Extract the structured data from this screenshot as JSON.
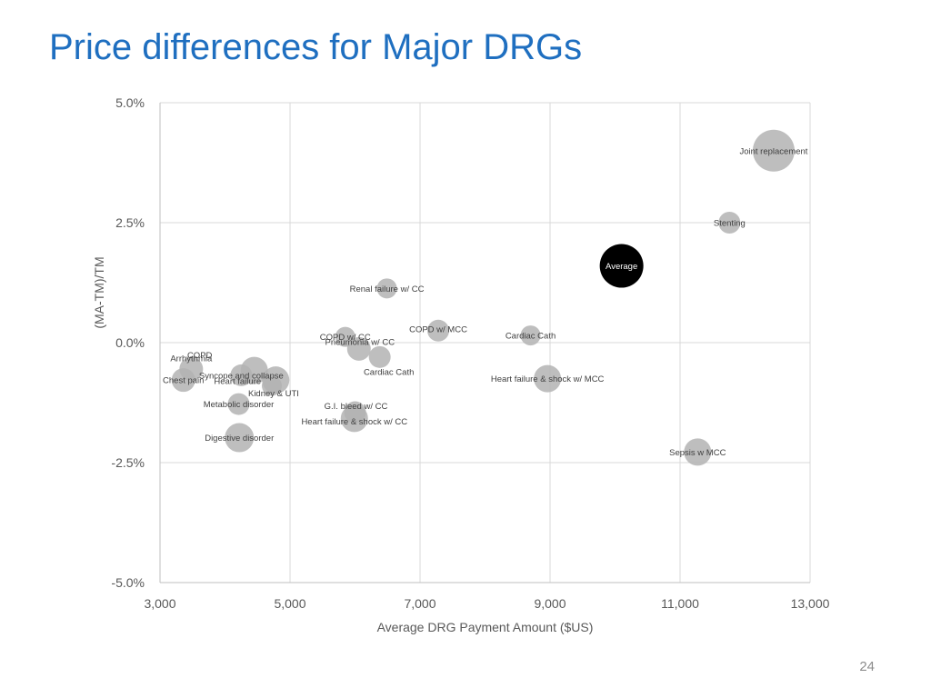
{
  "slide": {
    "title": "Price differences for Major DRGs",
    "page_number": "24"
  },
  "chart_data": {
    "type": "bubble",
    "title": "",
    "xlabel": "Average DRG Payment  Amount ($US)",
    "ylabel": "(MA-TM)/TM",
    "xlim": [
      3000,
      13000
    ],
    "ylim": [
      -0.05,
      0.05
    ],
    "x_ticks": [
      3000,
      5000,
      7000,
      9000,
      11000,
      13000
    ],
    "x_tick_labels": [
      "3,000",
      "5,000",
      "7,000",
      "9,000",
      "11,000",
      "13,000"
    ],
    "y_ticks": [
      -0.05,
      -0.025,
      0,
      0.025,
      0.05
    ],
    "y_tick_labels": [
      "-5.0%",
      "-2.5%",
      "0.0%",
      "2.5%",
      "5.0%"
    ],
    "grid": true,
    "bubble_color": "#b3b3b3",
    "highlight_color": "#000000",
    "points": [
      {
        "label": "Joint replacement",
        "x": 12440,
        "y": 0.04,
        "size": 23
      },
      {
        "label": "Stenting",
        "x": 11760,
        "y": 0.025,
        "size": 12
      },
      {
        "label": "Average",
        "x": 10100,
        "y": 0.016,
        "size": 24,
        "highlight": true
      },
      {
        "label": "Renal failure w/ CC",
        "x": 6490,
        "y": 0.0113,
        "size": 11
      },
      {
        "label": "COPD w/ MCC",
        "x": 7280,
        "y": 0.0025,
        "size": 12
      },
      {
        "label": "Cardiac Cath",
        "x": 8700,
        "y": 0.0015,
        "size": 11
      },
      {
        "label": "COPD w/ CC",
        "x": 5850,
        "y": 0.0012,
        "size": 11
      },
      {
        "label": "Pneumonia w/ CC",
        "x": 6060,
        "y": -0.0013,
        "size": 13
      },
      {
        "label": "Cardiac Cath",
        "x": 6380,
        "y": -0.003,
        "size": 12
      },
      {
        "label": "Heart failure & shock w/ MCC",
        "x": 8960,
        "y": -0.0075,
        "size": 15
      },
      {
        "label": "Arrhythmia",
        "x": 3480,
        "y": -0.0055,
        "size": 13
      },
      {
        "label": "COPD",
        "x": 4450,
        "y": -0.0058,
        "size": 15
      },
      {
        "label": "Syncope and collapse",
        "x": 4250,
        "y": -0.0068,
        "size": 12
      },
      {
        "label": "Chest pain",
        "x": 3360,
        "y": -0.0078,
        "size": 13
      },
      {
        "label": "Heart failure",
        "x": 4780,
        "y": -0.0078,
        "size": 15
      },
      {
        "label": "Kidney & UTI",
        "x": 4720,
        "y": -0.009,
        "size": 11
      },
      {
        "label": "Metabolic disorder",
        "x": 4210,
        "y": -0.0128,
        "size": 12
      },
      {
        "label": "G.I. bleed w/ CC",
        "x": 6000,
        "y": -0.0145,
        "size": 12
      },
      {
        "label": "Heart failure & shock w/ CC",
        "x": 5990,
        "y": -0.0158,
        "size": 15
      },
      {
        "label": "Digestive disorder",
        "x": 4220,
        "y": -0.0198,
        "size": 16
      },
      {
        "label": "Sepsis  w MCC",
        "x": 11270,
        "y": -0.0228,
        "size": 15
      }
    ]
  }
}
